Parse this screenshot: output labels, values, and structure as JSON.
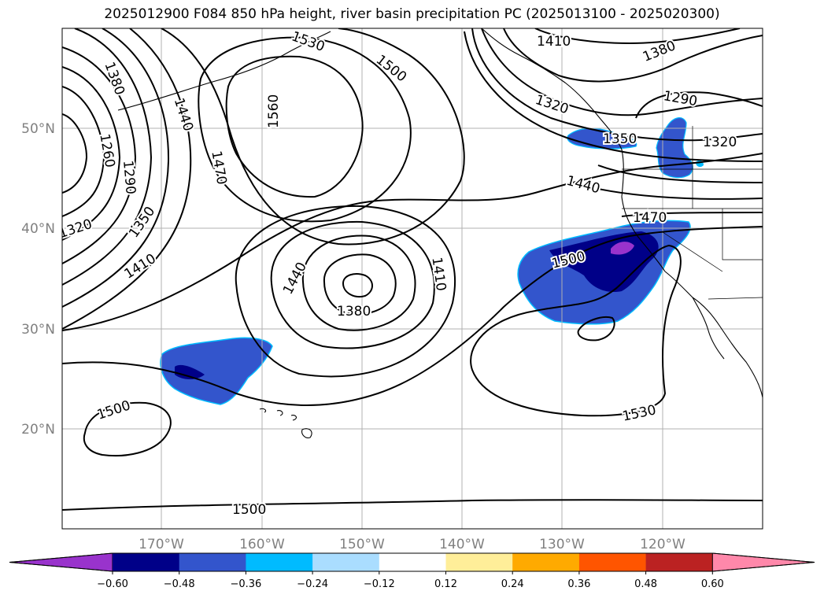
{
  "title": "2025012900 F084 850 hPa height, river basin precipitation PC (2025013100 - 2025020300)",
  "map": {
    "lat_labels": [
      "50°N",
      "40°N",
      "30°N",
      "20°N"
    ],
    "lon_labels": [
      "170°W",
      "160°W",
      "150°W",
      "140°W",
      "130°W",
      "120°W"
    ],
    "grid_color": "#b0b0b0",
    "tick_label_color": "#808080"
  },
  "contour_labels": [
    {
      "text": "1380",
      "name": "contour-label-1380-nw"
    },
    {
      "text": "1530",
      "name": "contour-label-1530-north"
    },
    {
      "text": "1500",
      "name": "contour-label-1500-north"
    },
    {
      "text": "1410",
      "name": "contour-label-1410-ne"
    },
    {
      "text": "1380",
      "name": "contour-label-1380-ne"
    },
    {
      "text": "1320",
      "name": "contour-label-1320-ne"
    },
    {
      "text": "1290",
      "name": "contour-label-1290-ne"
    },
    {
      "text": "1350",
      "name": "contour-label-1350-coast"
    },
    {
      "text": "1320",
      "name": "contour-label-1320-east"
    },
    {
      "text": "1440",
      "name": "contour-label-1440-east"
    },
    {
      "text": "1470",
      "name": "contour-label-1470-east"
    },
    {
      "text": "1500",
      "name": "contour-label-1500-east"
    },
    {
      "text": "1440",
      "name": "contour-label-1440-west"
    },
    {
      "text": "1470",
      "name": "contour-label-1470-west"
    },
    {
      "text": "1560",
      "name": "contour-label-1560"
    },
    {
      "text": "1260",
      "name": "contour-label-1260"
    },
    {
      "text": "1290",
      "name": "contour-label-1290-west"
    },
    {
      "text": "1320",
      "name": "contour-label-1320-west"
    },
    {
      "text": "1350",
      "name": "contour-label-1350-west"
    },
    {
      "text": "1410",
      "name": "contour-label-1410-west"
    },
    {
      "text": "1440",
      "name": "contour-label-1440-low"
    },
    {
      "text": "1410",
      "name": "contour-label-1410-low"
    },
    {
      "text": "1380",
      "name": "contour-label-1380-low"
    },
    {
      "text": "1500",
      "name": "contour-label-1500-sw"
    },
    {
      "text": "1530",
      "name": "contour-label-1530-south"
    },
    {
      "text": "1500",
      "name": "contour-label-1500-south"
    }
  ],
  "colorbar": {
    "colors": [
      "#9933cc",
      "#000088",
      "#3355cc",
      "#00bbff",
      "#aaddff",
      "#ffffff",
      "#ffee99",
      "#ffaa00",
      "#ff5500",
      "#bb2222",
      "#ff88aa"
    ],
    "tick_labels": [
      "−0.60",
      "−0.48",
      "−0.36",
      "−0.24",
      "−0.12",
      "0.12",
      "0.24",
      "0.36",
      "0.48",
      "0.60"
    ]
  },
  "precip_colors": {
    "strong_neg": "#000088",
    "mid_neg": "#3355cc",
    "light_neg": "#00bbff",
    "extreme_neg": "#9933cc"
  }
}
